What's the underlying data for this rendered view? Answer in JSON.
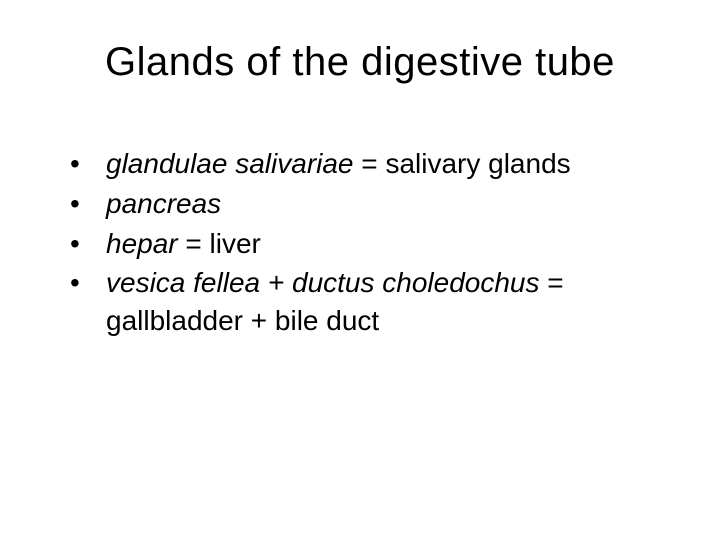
{
  "title": "Glands of the digestive tube",
  "items": [
    {
      "latin": "glandulae salivariae",
      "sep": " = ",
      "plain": "salivary glands"
    },
    {
      "latin": "pancreas",
      "sep": "",
      "plain": ""
    },
    {
      "latin": "hepar",
      "sep": " = ",
      "plain": "liver"
    },
    {
      "latin": "vesica fellea + ductus choledochus",
      "sep": " = ",
      "plain": "gallbladder + bile duct"
    }
  ],
  "colors": {
    "background": "#ffffff",
    "text": "#000000"
  },
  "typography": {
    "title_fontsize": 40,
    "body_fontsize": 28,
    "font_family": "Arial"
  }
}
